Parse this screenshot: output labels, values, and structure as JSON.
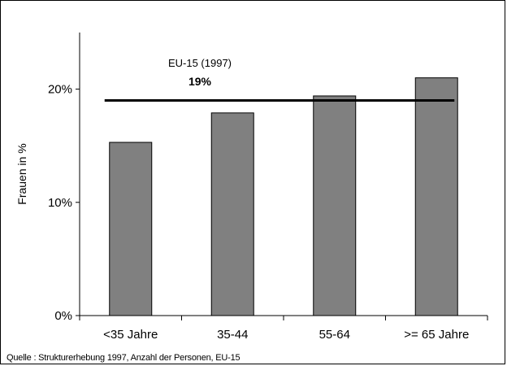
{
  "chart_data": {
    "type": "bar",
    "categories": [
      "<35 Jahre",
      "35-44",
      "55-64",
      ">= 65 Jahre"
    ],
    "values": [
      15.3,
      17.9,
      19.4,
      21.0
    ],
    "ylabel": "Frauen in %",
    "ylim": [
      0,
      25
    ],
    "yticks": [
      0,
      10,
      20
    ],
    "ytick_labels": [
      "0%",
      "10%",
      "20%"
    ],
    "grid": false,
    "bar_color": "#808080",
    "reference_line": {
      "value": 19,
      "label": "EU-15 (1997)",
      "value_label": "19%"
    }
  },
  "source_note": "Quelle : Strukturerhebung 1997, Anzahl der Personen, EU-15"
}
